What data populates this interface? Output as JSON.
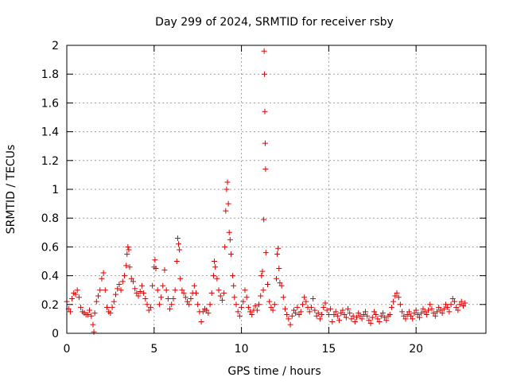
{
  "chart_data": {
    "type": "scatter",
    "title": "Day 299 of 2024, SRMTID for receiver rsby",
    "xlabel": "GPS time / hours",
    "ylabel": "SRMTID / TECUs",
    "xlim": [
      0,
      24
    ],
    "ylim": [
      0,
      2
    ],
    "xticks": [
      0,
      5,
      10,
      15,
      20
    ],
    "yticks": [
      0,
      0.2,
      0.4,
      0.6,
      0.8,
      1,
      1.2,
      1.4,
      1.6,
      1.8,
      2
    ],
    "ytick_labels": [
      "0",
      "0.2",
      "0.4",
      "0.6",
      "0.8",
      "1",
      "1.2",
      "1.4",
      "1.6",
      "1.8",
      "2"
    ],
    "grid": true,
    "marker": "+",
    "color": "#e00000",
    "series": [
      {
        "name": "SRMTID",
        "points": [
          [
            0.0,
            0.22
          ],
          [
            0.1,
            0.17
          ],
          [
            0.2,
            0.15
          ],
          [
            0.3,
            0.24
          ],
          [
            0.4,
            0.28
          ],
          [
            0.5,
            0.27
          ],
          [
            0.6,
            0.3
          ],
          [
            0.7,
            0.25
          ],
          [
            0.8,
            0.18
          ],
          [
            0.9,
            0.15
          ],
          [
            1.0,
            0.14
          ],
          [
            1.1,
            0.13
          ],
          [
            1.2,
            0.13
          ],
          [
            1.3,
            0.16
          ],
          [
            1.4,
            0.12
          ],
          [
            1.5,
            0.06
          ],
          [
            1.55,
            0.01
          ],
          [
            1.6,
            0.14
          ],
          [
            1.7,
            0.22
          ],
          [
            1.8,
            0.26
          ],
          [
            1.9,
            0.3
          ],
          [
            2.0,
            0.38
          ],
          [
            2.1,
            0.42
          ],
          [
            2.2,
            0.3
          ],
          [
            2.3,
            0.18
          ],
          [
            2.4,
            0.15
          ],
          [
            2.5,
            0.14
          ],
          [
            2.6,
            0.18
          ],
          [
            2.7,
            0.22
          ],
          [
            2.8,
            0.27
          ],
          [
            2.9,
            0.31
          ],
          [
            3.0,
            0.34
          ],
          [
            3.1,
            0.3
          ],
          [
            3.2,
            0.36
          ],
          [
            3.3,
            0.4
          ],
          [
            3.4,
            0.47
          ],
          [
            3.45,
            0.55
          ],
          [
            3.5,
            0.6
          ],
          [
            3.55,
            0.58
          ],
          [
            3.6,
            0.46
          ],
          [
            3.7,
            0.38
          ],
          [
            3.8,
            0.36
          ],
          [
            3.9,
            0.31
          ],
          [
            4.0,
            0.28
          ],
          [
            4.1,
            0.26
          ],
          [
            4.2,
            0.29
          ],
          [
            4.3,
            0.33
          ],
          [
            4.4,
            0.28
          ],
          [
            4.5,
            0.24
          ],
          [
            4.6,
            0.2
          ],
          [
            4.7,
            0.16
          ],
          [
            4.8,
            0.18
          ],
          [
            4.9,
            0.33
          ],
          [
            5.0,
            0.46
          ],
          [
            5.05,
            0.51
          ],
          [
            5.1,
            0.45
          ],
          [
            5.2,
            0.3
          ],
          [
            5.3,
            0.2
          ],
          [
            5.4,
            0.25
          ],
          [
            5.5,
            0.33
          ],
          [
            5.6,
            0.44
          ],
          [
            5.7,
            0.3
          ],
          [
            5.8,
            0.24
          ],
          [
            5.9,
            0.17
          ],
          [
            6.0,
            0.2
          ],
          [
            6.1,
            0.24
          ],
          [
            6.2,
            0.3
          ],
          [
            6.3,
            0.5
          ],
          [
            6.35,
            0.66
          ],
          [
            6.4,
            0.62
          ],
          [
            6.45,
            0.58
          ],
          [
            6.5,
            0.38
          ],
          [
            6.6,
            0.3
          ],
          [
            6.7,
            0.28
          ],
          [
            6.8,
            0.25
          ],
          [
            6.9,
            0.22
          ],
          [
            7.0,
            0.2
          ],
          [
            7.1,
            0.24
          ],
          [
            7.2,
            0.28
          ],
          [
            7.3,
            0.33
          ],
          [
            7.4,
            0.28
          ],
          [
            7.5,
            0.2
          ],
          [
            7.6,
            0.15
          ],
          [
            7.7,
            0.08
          ],
          [
            7.8,
            0.15
          ],
          [
            7.9,
            0.17
          ],
          [
            8.0,
            0.16
          ],
          [
            8.1,
            0.14
          ],
          [
            8.2,
            0.2
          ],
          [
            8.3,
            0.28
          ],
          [
            8.4,
            0.4
          ],
          [
            8.45,
            0.5
          ],
          [
            8.5,
            0.46
          ],
          [
            8.6,
            0.38
          ],
          [
            8.7,
            0.3
          ],
          [
            8.8,
            0.26
          ],
          [
            8.9,
            0.23
          ],
          [
            9.0,
            0.28
          ],
          [
            9.05,
            0.6
          ],
          [
            9.1,
            0.85
          ],
          [
            9.15,
            1.0
          ],
          [
            9.2,
            1.05
          ],
          [
            9.25,
            0.9
          ],
          [
            9.3,
            0.7
          ],
          [
            9.35,
            0.65
          ],
          [
            9.4,
            0.55
          ],
          [
            9.5,
            0.4
          ],
          [
            9.55,
            0.33
          ],
          [
            9.6,
            0.25
          ],
          [
            9.7,
            0.2
          ],
          [
            9.8,
            0.15
          ],
          [
            9.9,
            0.12
          ],
          [
            10.0,
            0.18
          ],
          [
            10.1,
            0.22
          ],
          [
            10.2,
            0.3
          ],
          [
            10.3,
            0.25
          ],
          [
            10.4,
            0.18
          ],
          [
            10.5,
            0.15
          ],
          [
            10.6,
            0.13
          ],
          [
            10.7,
            0.16
          ],
          [
            10.8,
            0.19
          ],
          [
            10.9,
            0.16
          ],
          [
            11.0,
            0.2
          ],
          [
            11.1,
            0.26
          ],
          [
            11.15,
            0.4
          ],
          [
            11.2,
            0.43
          ],
          [
            11.25,
            0.3
          ],
          [
            11.28,
            0.79
          ],
          [
            11.3,
            1.96
          ],
          [
            11.32,
            1.8
          ],
          [
            11.34,
            1.54
          ],
          [
            11.36,
            1.32
          ],
          [
            11.38,
            1.14
          ],
          [
            11.4,
            0.56
          ],
          [
            11.5,
            0.34
          ],
          [
            11.6,
            0.22
          ],
          [
            11.7,
            0.18
          ],
          [
            11.8,
            0.16
          ],
          [
            11.9,
            0.2
          ],
          [
            12.0,
            0.38
          ],
          [
            12.05,
            0.55
          ],
          [
            12.1,
            0.59
          ],
          [
            12.15,
            0.45
          ],
          [
            12.2,
            0.35
          ],
          [
            12.3,
            0.33
          ],
          [
            12.4,
            0.25
          ],
          [
            12.5,
            0.17
          ],
          [
            12.6,
            0.13
          ],
          [
            12.7,
            0.1
          ],
          [
            12.8,
            0.06
          ],
          [
            12.9,
            0.12
          ],
          [
            13.0,
            0.16
          ],
          [
            13.1,
            0.14
          ],
          [
            13.2,
            0.18
          ],
          [
            13.3,
            0.13
          ],
          [
            13.4,
            0.15
          ],
          [
            13.5,
            0.2
          ],
          [
            13.6,
            0.25
          ],
          [
            13.7,
            0.22
          ],
          [
            13.8,
            0.18
          ],
          [
            13.9,
            0.15
          ],
          [
            14.0,
            0.18
          ],
          [
            14.1,
            0.24
          ],
          [
            14.2,
            0.16
          ],
          [
            14.3,
            0.12
          ],
          [
            14.4,
            0.14
          ],
          [
            14.5,
            0.1
          ],
          [
            14.6,
            0.13
          ],
          [
            14.7,
            0.18
          ],
          [
            14.8,
            0.21
          ],
          [
            14.9,
            0.16
          ],
          [
            15.0,
            0.13
          ],
          [
            15.1,
            0.17
          ],
          [
            15.2,
            0.08
          ],
          [
            15.3,
            0.13
          ],
          [
            15.4,
            0.15
          ],
          [
            15.5,
            0.12
          ],
          [
            15.6,
            0.09
          ],
          [
            15.7,
            0.14
          ],
          [
            15.8,
            0.16
          ],
          [
            15.9,
            0.13
          ],
          [
            16.0,
            0.11
          ],
          [
            16.1,
            0.17
          ],
          [
            16.2,
            0.14
          ],
          [
            16.3,
            0.1
          ],
          [
            16.4,
            0.12
          ],
          [
            16.5,
            0.08
          ],
          [
            16.6,
            0.11
          ],
          [
            16.7,
            0.14
          ],
          [
            16.8,
            0.12
          ],
          [
            16.9,
            0.1
          ],
          [
            17.0,
            0.13
          ],
          [
            17.1,
            0.15
          ],
          [
            17.2,
            0.12
          ],
          [
            17.3,
            0.09
          ],
          [
            17.4,
            0.07
          ],
          [
            17.5,
            0.11
          ],
          [
            17.6,
            0.15
          ],
          [
            17.7,
            0.13
          ],
          [
            17.8,
            0.1
          ],
          [
            17.9,
            0.08
          ],
          [
            18.0,
            0.12
          ],
          [
            18.1,
            0.14
          ],
          [
            18.2,
            0.11
          ],
          [
            18.3,
            0.09
          ],
          [
            18.4,
            0.12
          ],
          [
            18.5,
            0.13
          ],
          [
            18.6,
            0.18
          ],
          [
            18.7,
            0.22
          ],
          [
            18.8,
            0.26
          ],
          [
            18.9,
            0.28
          ],
          [
            19.0,
            0.25
          ],
          [
            19.1,
            0.2
          ],
          [
            19.2,
            0.15
          ],
          [
            19.3,
            0.12
          ],
          [
            19.4,
            0.1
          ],
          [
            19.5,
            0.13
          ],
          [
            19.6,
            0.15
          ],
          [
            19.7,
            0.12
          ],
          [
            19.8,
            0.1
          ],
          [
            19.9,
            0.14
          ],
          [
            20.0,
            0.16
          ],
          [
            20.1,
            0.13
          ],
          [
            20.2,
            0.11
          ],
          [
            20.3,
            0.14
          ],
          [
            20.4,
            0.17
          ],
          [
            20.5,
            0.15
          ],
          [
            20.6,
            0.13
          ],
          [
            20.7,
            0.16
          ],
          [
            20.8,
            0.2
          ],
          [
            20.9,
            0.17
          ],
          [
            21.0,
            0.14
          ],
          [
            21.1,
            0.12
          ],
          [
            21.2,
            0.15
          ],
          [
            21.3,
            0.18
          ],
          [
            21.4,
            0.16
          ],
          [
            21.5,
            0.14
          ],
          [
            21.6,
            0.17
          ],
          [
            21.7,
            0.2
          ],
          [
            21.8,
            0.18
          ],
          [
            21.9,
            0.15
          ],
          [
            22.0,
            0.2
          ],
          [
            22.1,
            0.24
          ],
          [
            22.2,
            0.22
          ],
          [
            22.3,
            0.18
          ],
          [
            22.4,
            0.16
          ],
          [
            22.5,
            0.2
          ],
          [
            22.6,
            0.22
          ],
          [
            22.7,
            0.19
          ],
          [
            22.8,
            0.21
          ]
        ]
      }
    ]
  }
}
